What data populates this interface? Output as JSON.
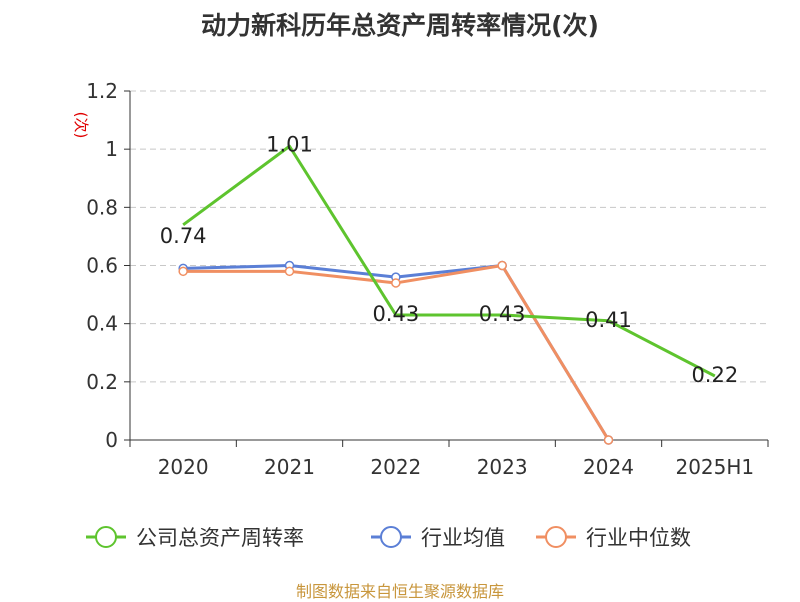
{
  "source_note": "制图数据来自恒生聚源数据库",
  "colors": {
    "company": "#5ec42e",
    "industry_avg": "#5b7fd6",
    "industry_median": "#f08f62",
    "grid": "#c8c8c8",
    "axis": "#333333",
    "unit": "#e00000"
  },
  "chart_data": {
    "type": "line",
    "title": "动力新科历年总资产周转率情况(次)",
    "ylabel": "(次)",
    "ylim": [
      0,
      1.2
    ],
    "yticks": [
      0,
      0.2,
      0.4,
      0.6,
      0.8,
      1,
      1.2
    ],
    "ytick_labels": [
      "0",
      "0.2",
      "0.4",
      "0.6",
      "0.8",
      "1",
      "1.2"
    ],
    "grid": true,
    "legend_position": "bottom",
    "categories": [
      "2020",
      "2021",
      "2022",
      "2023",
      "2024",
      "2025H1"
    ],
    "series": [
      {
        "name": "公司总资产周转率",
        "color_key": "company",
        "values": [
          0.74,
          1.01,
          0.43,
          0.43,
          0.41,
          0.22
        ],
        "labels": [
          "0.74",
          "1.01",
          "0.43",
          "0.43",
          "0.41",
          "0.22"
        ],
        "markers": [
          false,
          false,
          false,
          false,
          false,
          false
        ]
      },
      {
        "name": "行业均值",
        "color_key": "industry_avg",
        "values": [
          0.59,
          0.6,
          0.56,
          0.6,
          0.0,
          null
        ],
        "markers": [
          true,
          true,
          true,
          true,
          true,
          false
        ]
      },
      {
        "name": "行业中位数",
        "color_key": "industry_median",
        "values": [
          0.58,
          0.58,
          0.54,
          0.6,
          0.0,
          null
        ],
        "markers": [
          true,
          true,
          true,
          true,
          true,
          false
        ]
      }
    ]
  }
}
